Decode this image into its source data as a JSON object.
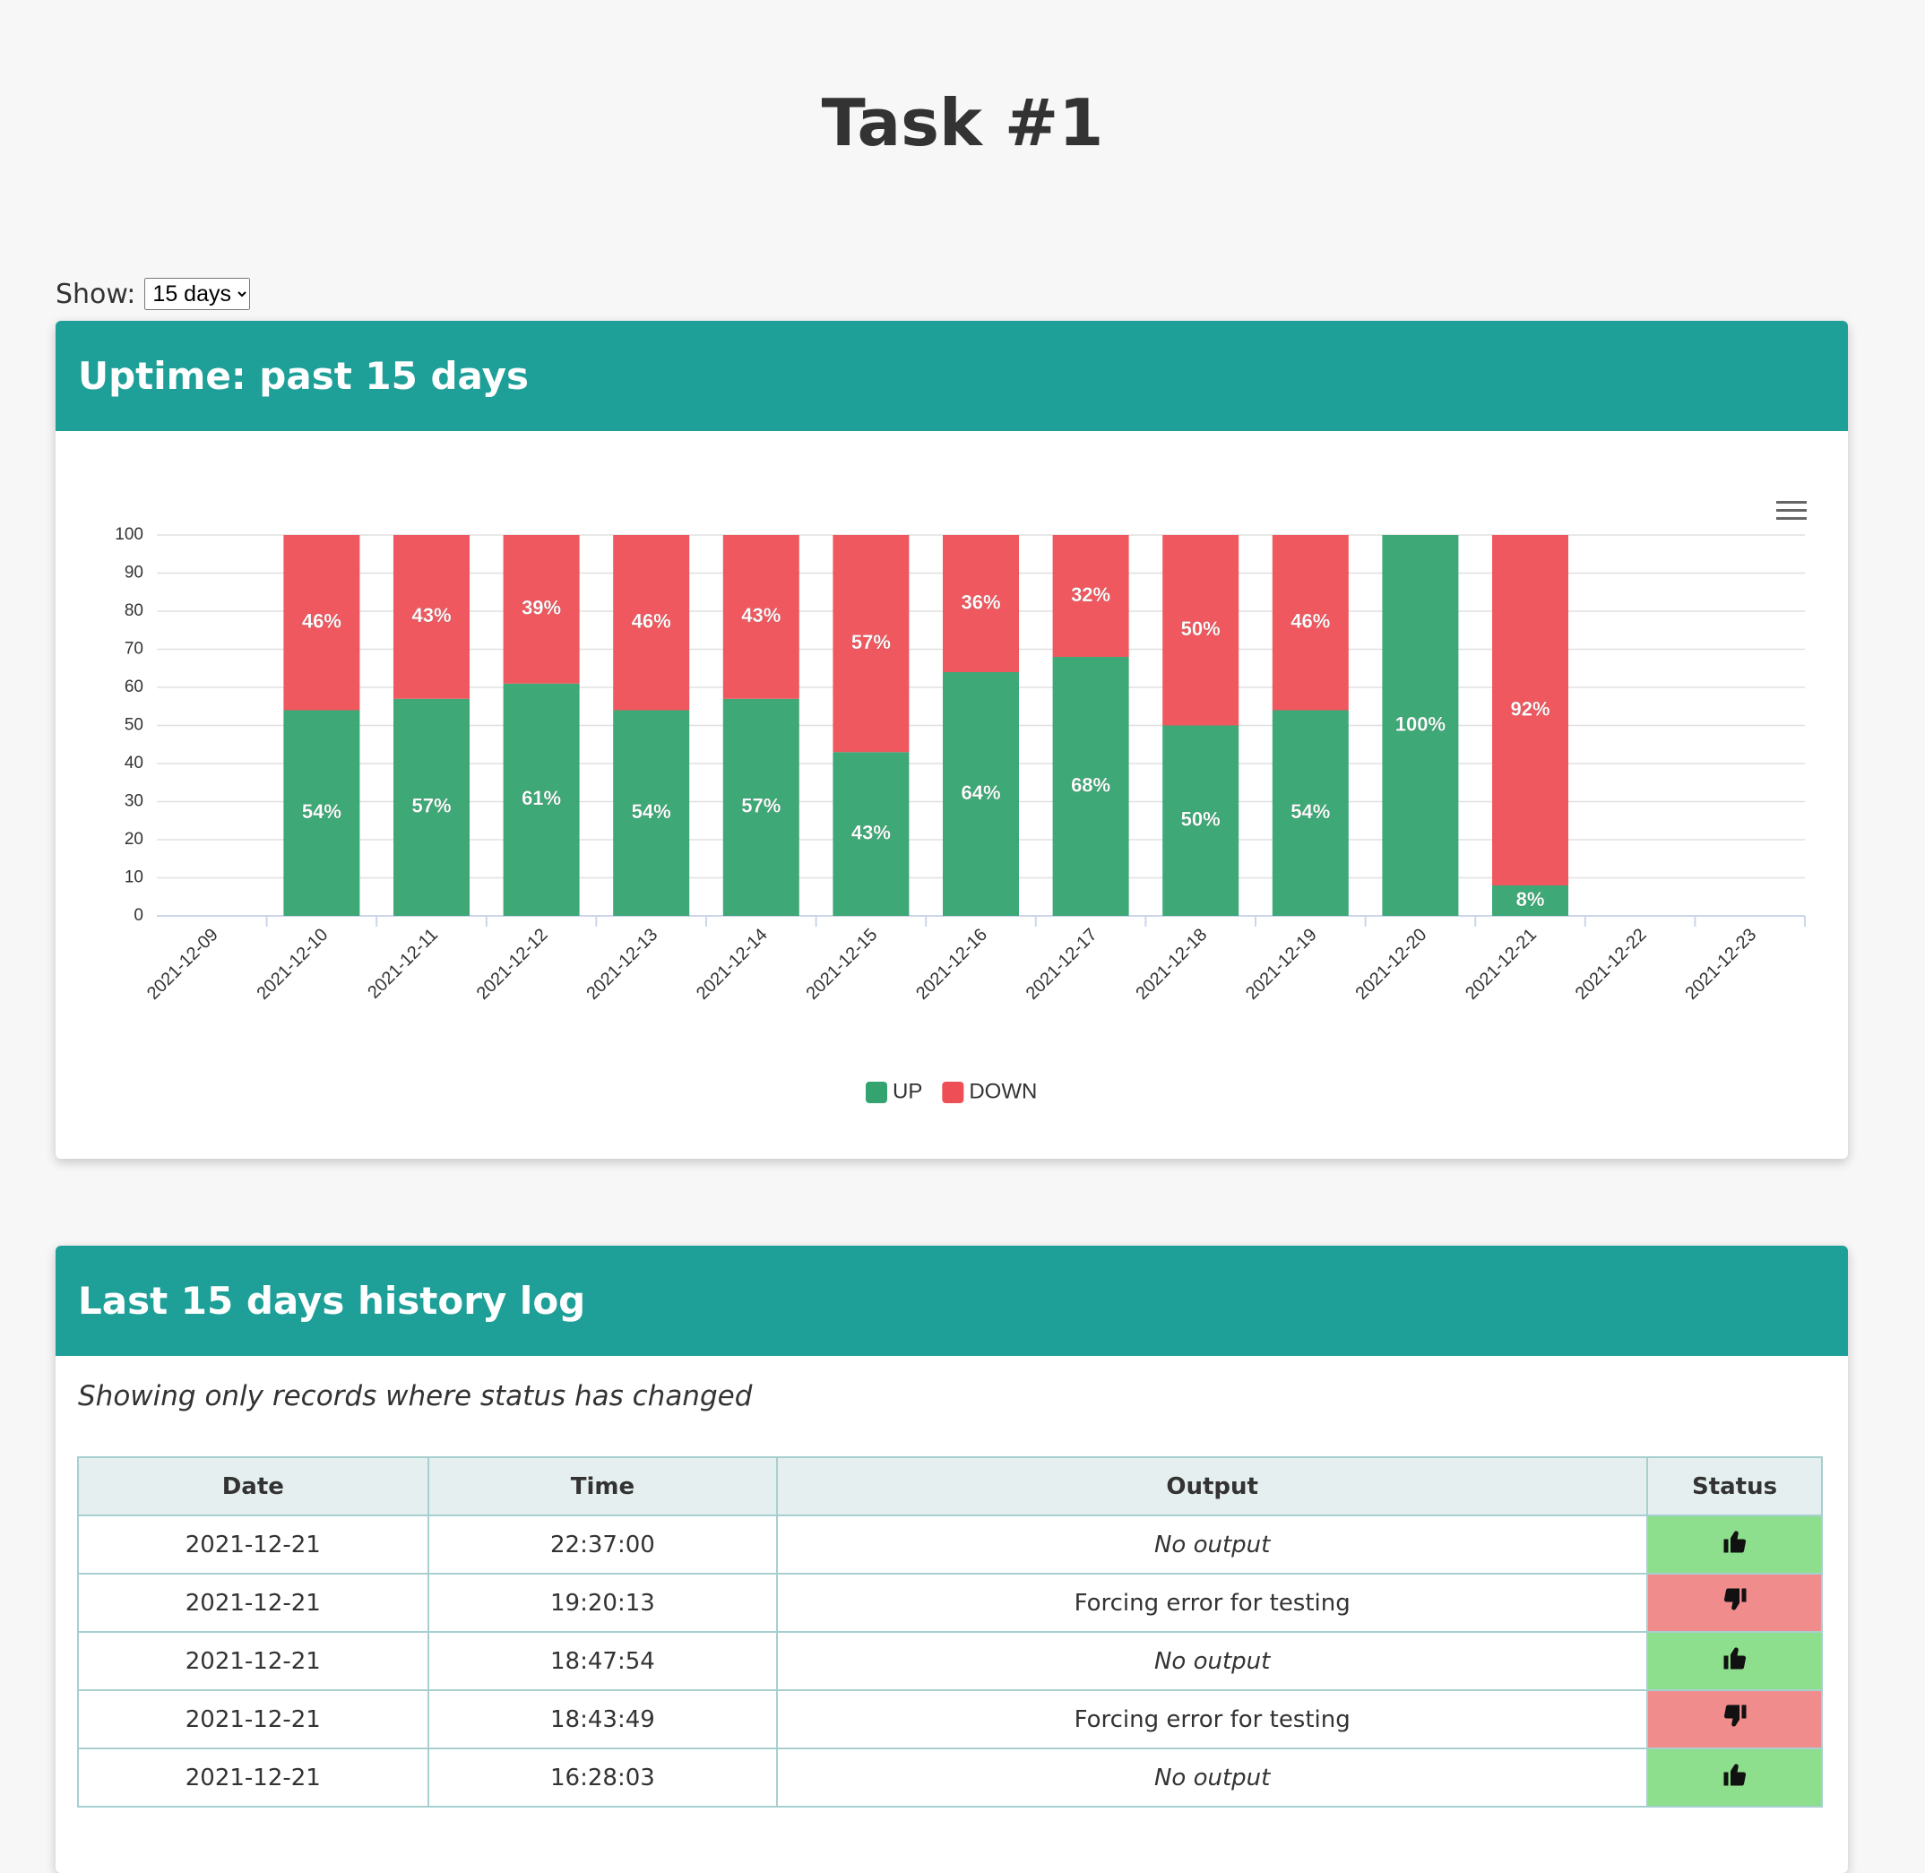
{
  "header": {
    "title": "Task #1",
    "show_label": "Show:",
    "show_option": "15 days"
  },
  "chart_data": {
    "type": "bar",
    "stacked": true,
    "title": "Uptime: past 15 days",
    "categories": [
      "2021-12-09",
      "2021-12-10",
      "2021-12-11",
      "2021-12-12",
      "2021-12-13",
      "2021-12-14",
      "2021-12-15",
      "2021-12-16",
      "2021-12-17",
      "2021-12-18",
      "2021-12-19",
      "2021-12-20",
      "2021-12-21",
      "2021-12-22",
      "2021-12-23"
    ],
    "series": [
      {
        "name": "UP",
        "color": "#34a36f",
        "values": [
          null,
          54,
          57,
          61,
          54,
          57,
          43,
          64,
          68,
          50,
          54,
          100,
          8,
          null,
          null
        ],
        "value_labels": [
          null,
          "54%",
          "57%",
          "61%",
          "54%",
          "57%",
          "43%",
          "64%",
          "68%",
          "50%",
          "54%",
          "100%",
          "8%",
          null,
          null
        ]
      },
      {
        "name": "DOWN",
        "color": "#ee4f56",
        "values": [
          null,
          46,
          43,
          39,
          46,
          43,
          57,
          36,
          32,
          50,
          46,
          null,
          92,
          null,
          null
        ],
        "value_labels": [
          null,
          "46%",
          "43%",
          "39%",
          "46%",
          "43%",
          "57%",
          "36%",
          "32%",
          "50%",
          "46%",
          null,
          "92%",
          null,
          null
        ]
      }
    ],
    "ylim": [
      0,
      100
    ],
    "yticks": [
      0,
      10,
      20,
      30,
      40,
      50,
      60,
      70,
      80,
      90,
      100
    ],
    "grid": true,
    "legend": "bottom"
  },
  "log": {
    "title": "Last 15 days history log",
    "note": "Showing only records where status has changed"
  },
  "table": {
    "headers": [
      "Date",
      "Time",
      "Output",
      "Status"
    ],
    "rows": [
      [
        "2021-12-21",
        "22:37:00",
        "No output"
      ],
      [
        "2021-12-21",
        "19:20:13",
        "Forcing error for testing"
      ],
      [
        "2021-12-21",
        "18:47:54",
        "No output"
      ],
      [
        "2021-12-21",
        "18:43:49",
        "Forcing error for testing"
      ],
      [
        "2021-12-21",
        "16:28:03",
        "No output"
      ]
    ]
  }
}
